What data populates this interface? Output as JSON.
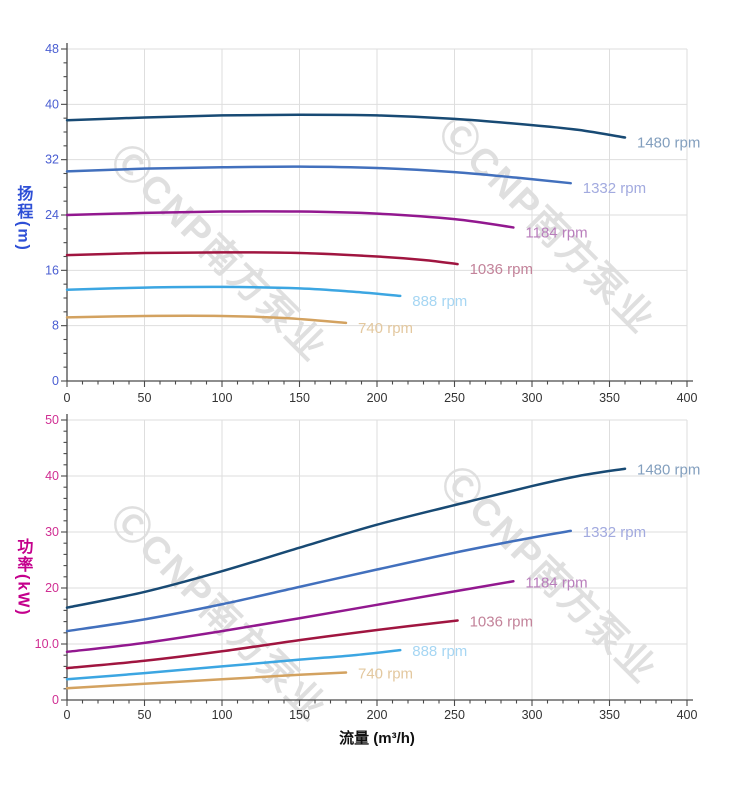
{
  "watermark": {
    "text": "ⒸCNP南方泵业",
    "color": "rgba(110,110,110,0.22)"
  },
  "shared_style": {
    "grid_color": "#dedede",
    "axis_color": "#4a4a4a"
  },
  "chart_data": [
    {
      "id": "head-vs-flow",
      "type": "line",
      "title": "",
      "xlabel": "",
      "ylabel": "扬程(m)",
      "xlim": [
        0,
        400
      ],
      "ylim": [
        0,
        48
      ],
      "grid": true,
      "legend_position": "right-of-line-end",
      "x_ticks": [
        0,
        50,
        100,
        150,
        200,
        250,
        300,
        350,
        400
      ],
      "x_minor_step": 10,
      "y_minor_step": 2,
      "y_ticks": [
        {
          "value": 0,
          "label": "0"
        },
        {
          "value": 8,
          "label": "8"
        },
        {
          "value": 16,
          "label": "16"
        },
        {
          "value": 24,
          "label": "24"
        },
        {
          "value": 32,
          "label": "32"
        },
        {
          "value": 40,
          "label": "40"
        },
        {
          "value": 48,
          "label": "48"
        }
      ],
      "style": {
        "y_tick_color": "#4a5ed2",
        "y_title_color": "#2e4fd6",
        "x_tick_color": "#333333"
      },
      "series": [
        {
          "name": "1480 rpm",
          "color": "#184a74",
          "label_color": "#839fbe",
          "points": [
            [
              0,
              37.7
            ],
            [
              50,
              38.1
            ],
            [
              100,
              38.4
            ],
            [
              150,
              38.5
            ],
            [
              200,
              38.4
            ],
            [
              250,
              37.9
            ],
            [
              300,
              37.0
            ],
            [
              330,
              36.3
            ],
            [
              360,
              35.2
            ]
          ]
        },
        {
          "name": "1332 rpm",
          "color": "#4270bd",
          "label_color": "#a2aadf",
          "points": [
            [
              0,
              30.3
            ],
            [
              50,
              30.7
            ],
            [
              100,
              30.9
            ],
            [
              150,
              31.0
            ],
            [
              200,
              30.8
            ],
            [
              250,
              30.2
            ],
            [
              290,
              29.4
            ],
            [
              325,
              28.6
            ]
          ]
        },
        {
          "name": "1184 rpm",
          "color": "#92188f",
          "label_color": "#b97ebc",
          "points": [
            [
              0,
              24.0
            ],
            [
              50,
              24.3
            ],
            [
              100,
              24.5
            ],
            [
              150,
              24.5
            ],
            [
              200,
              24.2
            ],
            [
              250,
              23.4
            ],
            [
              288,
              22.2
            ]
          ]
        },
        {
          "name": "1036 rpm",
          "color": "#a01540",
          "label_color": "#c3839a",
          "points": [
            [
              0,
              18.2
            ],
            [
              50,
              18.5
            ],
            [
              100,
              18.6
            ],
            [
              150,
              18.5
            ],
            [
              200,
              18.0
            ],
            [
              230,
              17.5
            ],
            [
              252,
              16.9
            ]
          ]
        },
        {
          "name": "888 rpm",
          "color": "#3ca6e2",
          "label_color": "#a6d6f3",
          "points": [
            [
              0,
              13.2
            ],
            [
              50,
              13.5
            ],
            [
              100,
              13.6
            ],
            [
              150,
              13.4
            ],
            [
              185,
              12.9
            ],
            [
              215,
              12.3
            ]
          ]
        },
        {
          "name": "740 rpm",
          "color": "#d3a260",
          "label_color": "#e3c89f",
          "points": [
            [
              0,
              9.2
            ],
            [
              50,
              9.4
            ],
            [
              100,
              9.4
            ],
            [
              140,
              9.1
            ],
            [
              180,
              8.4
            ]
          ]
        }
      ]
    },
    {
      "id": "power-vs-flow",
      "type": "line",
      "title": "",
      "xlabel": "流量 (m³/h)",
      "ylabel": "功率(kW)",
      "xlim": [
        0,
        400
      ],
      "ylim": [
        0,
        50
      ],
      "grid": true,
      "legend_position": "right-of-line-end",
      "x_ticks": [
        0,
        50,
        100,
        150,
        200,
        250,
        300,
        350,
        400
      ],
      "x_minor_step": 10,
      "y_minor_step": 2,
      "y_ticks": [
        {
          "value": 0,
          "label": "0"
        },
        {
          "value": 10,
          "label": "10.0"
        },
        {
          "value": 20,
          "label": "20"
        },
        {
          "value": 30,
          "label": "30"
        },
        {
          "value": 40,
          "label": "40"
        },
        {
          "value": 50,
          "label": "50"
        }
      ],
      "style": {
        "y_tick_color": "#d02f93",
        "y_title_color": "#c4008c",
        "x_tick_color": "#333333"
      },
      "series": [
        {
          "name": "1480 rpm",
          "color": "#184a74",
          "label_color": "#839fbe",
          "points": [
            [
              0,
              16.5
            ],
            [
              50,
              19.3
            ],
            [
              100,
              23.0
            ],
            [
              150,
              27.2
            ],
            [
              200,
              31.3
            ],
            [
              250,
              34.8
            ],
            [
              300,
              38.2
            ],
            [
              330,
              40.0
            ],
            [
              360,
              41.3
            ]
          ]
        },
        {
          "name": "1332 rpm",
          "color": "#4270bd",
          "label_color": "#a2aadf",
          "points": [
            [
              0,
              12.3
            ],
            [
              50,
              14.4
            ],
            [
              100,
              17.1
            ],
            [
              150,
              20.2
            ],
            [
              200,
              23.3
            ],
            [
              250,
              26.3
            ],
            [
              300,
              29.0
            ],
            [
              325,
              30.2
            ]
          ]
        },
        {
          "name": "1184 rpm",
          "color": "#92188f",
          "label_color": "#b97ebc",
          "points": [
            [
              0,
              8.6
            ],
            [
              50,
              10.2
            ],
            [
              100,
              12.3
            ],
            [
              150,
              14.6
            ],
            [
              200,
              17.0
            ],
            [
              250,
              19.4
            ],
            [
              288,
              21.2
            ]
          ]
        },
        {
          "name": "1036 rpm",
          "color": "#a01540",
          "label_color": "#c3839a",
          "points": [
            [
              0,
              5.7
            ],
            [
              50,
              7.0
            ],
            [
              100,
              8.7
            ],
            [
              150,
              10.7
            ],
            [
              200,
              12.5
            ],
            [
              252,
              14.2
            ]
          ]
        },
        {
          "name": "888 rpm",
          "color": "#3ca6e2",
          "label_color": "#a6d6f3",
          "points": [
            [
              0,
              3.7
            ],
            [
              50,
              4.8
            ],
            [
              100,
              6.0
            ],
            [
              150,
              7.2
            ],
            [
              185,
              8.0
            ],
            [
              215,
              8.9
            ]
          ]
        },
        {
          "name": "740 rpm",
          "color": "#d3a260",
          "label_color": "#e3c89f",
          "points": [
            [
              0,
              2.1
            ],
            [
              50,
              2.9
            ],
            [
              100,
              3.7
            ],
            [
              150,
              4.5
            ],
            [
              180,
              4.9
            ]
          ]
        }
      ]
    }
  ]
}
